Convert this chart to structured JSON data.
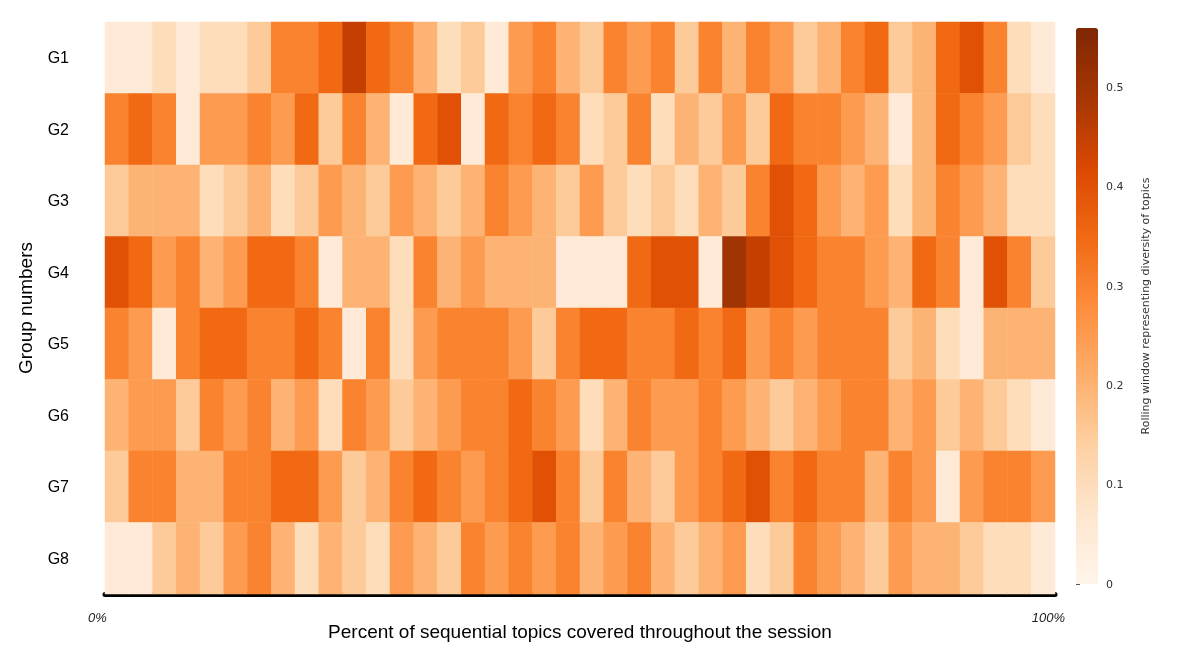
{
  "chart_data": {
    "type": "heatmap",
    "xlabel": "Percent of sequential topics covered throughout the session",
    "ylabel": "Group numbers",
    "clabel": "Rolling window representing diversity of topics",
    "annotations": [
      "0%",
      "100%"
    ],
    "categories": [
      null,
      null,
      null,
      null,
      null,
      null,
      null,
      null,
      null,
      null,
      null,
      null,
      null,
      null,
      null,
      null,
      null,
      null,
      null,
      null,
      null,
      null,
      null,
      null,
      null,
      null,
      null,
      null,
      null,
      null,
      null,
      null,
      null,
      null,
      null,
      null,
      null,
      null,
      null,
      null
    ],
    "y_categories": [
      "G1",
      "G2",
      "G3",
      "G4",
      "G5",
      "G6",
      "G7",
      "G8"
    ],
    "clim": [
      0,
      0.56
    ],
    "cticks": [
      0,
      0.1,
      0.2,
      0.3,
      0.4,
      0.5
    ],
    "cells": [
      [
        0.05,
        0.05,
        0.1,
        0.05,
        0.1,
        0.1,
        0.15,
        0.3,
        0.3,
        0.35,
        0.45,
        0.35,
        0.3,
        0.2,
        0.1,
        0.15,
        0.05,
        0.25,
        0.3,
        0.2,
        0.15,
        0.3,
        0.25,
        0.3,
        0.15,
        0.3,
        0.2,
        0.3,
        0.25,
        0.15,
        0.2,
        0.3,
        0.35,
        0.15,
        0.2,
        0.35,
        0.4,
        0.3,
        0.1,
        0.05
      ],
      [
        0.3,
        0.35,
        0.3,
        0.05,
        0.25,
        0.25,
        0.3,
        0.25,
        0.35,
        0.15,
        0.3,
        0.2,
        0.05,
        0.35,
        0.4,
        0.05,
        0.35,
        0.3,
        0.35,
        0.3,
        0.1,
        0.15,
        0.3,
        0.1,
        0.2,
        0.15,
        0.25,
        0.15,
        0.35,
        0.3,
        0.3,
        0.25,
        0.2,
        0.05,
        0.2,
        0.35,
        0.3,
        0.25,
        0.15,
        0.1
      ],
      [
        0.15,
        0.2,
        0.2,
        0.2,
        0.1,
        0.15,
        0.2,
        0.1,
        0.15,
        0.25,
        0.2,
        0.15,
        0.25,
        0.2,
        0.15,
        0.2,
        0.3,
        0.25,
        0.2,
        0.15,
        0.25,
        0.15,
        0.1,
        0.15,
        0.1,
        0.2,
        0.15,
        0.3,
        0.4,
        0.35,
        0.25,
        0.2,
        0.25,
        0.1,
        0.2,
        0.3,
        0.25,
        0.2,
        0.1,
        0.1
      ],
      [
        0.4,
        0.35,
        0.25,
        0.3,
        0.2,
        0.25,
        0.35,
        0.35,
        0.3,
        0.05,
        0.2,
        0.2,
        0.1,
        0.3,
        0.2,
        0.25,
        0.2,
        0.2,
        0.2,
        0.05,
        0.05,
        0.05,
        0.35,
        0.4,
        0.4,
        0.05,
        0.5,
        0.45,
        0.4,
        0.35,
        0.3,
        0.3,
        0.25,
        0.2,
        0.35,
        0.3,
        0.05,
        0.4,
        0.3,
        0.15
      ],
      [
        0.3,
        0.25,
        0.05,
        0.3,
        0.35,
        0.35,
        0.3,
        0.3,
        0.35,
        0.3,
        0.05,
        0.3,
        0.1,
        0.25,
        0.3,
        0.3,
        0.3,
        0.25,
        0.15,
        0.3,
        0.35,
        0.35,
        0.3,
        0.3,
        0.35,
        0.3,
        0.35,
        0.25,
        0.3,
        0.25,
        0.3,
        0.3,
        0.3,
        0.15,
        0.2,
        0.1,
        0.05,
        0.2,
        0.2,
        0.2
      ],
      [
        0.2,
        0.25,
        0.25,
        0.15,
        0.3,
        0.25,
        0.3,
        0.2,
        0.25,
        0.1,
        0.3,
        0.25,
        0.15,
        0.2,
        0.25,
        0.3,
        0.3,
        0.35,
        0.3,
        0.25,
        0.1,
        0.2,
        0.3,
        0.25,
        0.25,
        0.3,
        0.25,
        0.2,
        0.15,
        0.2,
        0.25,
        0.3,
        0.3,
        0.2,
        0.25,
        0.15,
        0.2,
        0.15,
        0.1,
        0.05
      ],
      [
        0.15,
        0.3,
        0.3,
        0.2,
        0.2,
        0.3,
        0.3,
        0.35,
        0.35,
        0.25,
        0.15,
        0.2,
        0.3,
        0.35,
        0.3,
        0.25,
        0.3,
        0.35,
        0.4,
        0.3,
        0.15,
        0.3,
        0.2,
        0.15,
        0.25,
        0.3,
        0.35,
        0.4,
        0.3,
        0.35,
        0.3,
        0.3,
        0.2,
        0.3,
        0.25,
        0.05,
        0.25,
        0.3,
        0.3,
        0.25
      ],
      [
        0.05,
        0.05,
        0.15,
        0.2,
        0.15,
        0.25,
        0.3,
        0.2,
        0.1,
        0.2,
        0.15,
        0.1,
        0.25,
        0.2,
        0.15,
        0.3,
        0.25,
        0.3,
        0.25,
        0.3,
        0.2,
        0.25,
        0.3,
        0.2,
        0.15,
        0.2,
        0.25,
        0.1,
        0.15,
        0.3,
        0.25,
        0.2,
        0.15,
        0.25,
        0.2,
        0.2,
        0.15,
        0.1,
        0.1,
        0.05
      ]
    ]
  }
}
